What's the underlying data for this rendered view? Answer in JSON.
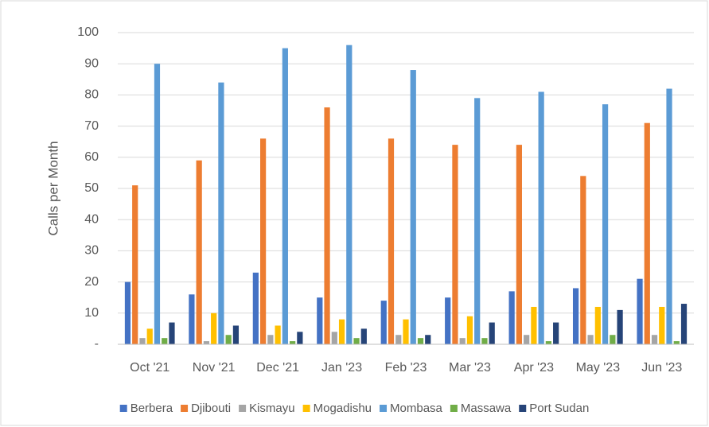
{
  "chart_data": {
    "type": "bar",
    "ylabel": "Calls per Month",
    "categories": [
      "Oct '21",
      "Nov '21",
      "Dec '21",
      "Jan '23",
      "Feb '23",
      "Mar '23",
      "Apr '23",
      "May '23",
      "Jun '23"
    ],
    "series": [
      {
        "name": "Berbera",
        "color": "#4472c4",
        "values": [
          20,
          16,
          23,
          15,
          14,
          15,
          17,
          18,
          21
        ]
      },
      {
        "name": "Djibouti",
        "color": "#ed7d31",
        "values": [
          51,
          59,
          66,
          76,
          66,
          64,
          64,
          54,
          71
        ]
      },
      {
        "name": "Kismayu",
        "color": "#a5a5a5",
        "values": [
          2,
          1,
          3,
          4,
          3,
          2,
          3,
          3,
          3
        ]
      },
      {
        "name": "Mogadishu",
        "color": "#ffc000",
        "values": [
          5,
          10,
          6,
          8,
          8,
          9,
          12,
          12,
          12
        ]
      },
      {
        "name": "Mombasa",
        "color": "#5b9bd5",
        "values": [
          90,
          84,
          95,
          96,
          88,
          79,
          81,
          77,
          82
        ]
      },
      {
        "name": "Massawa",
        "color": "#70ad47",
        "values": [
          2,
          3,
          1,
          2,
          2,
          2,
          1,
          3,
          1
        ]
      },
      {
        "name": "Port Sudan",
        "color": "#264478",
        "values": [
          7,
          6,
          4,
          5,
          3,
          7,
          7,
          11,
          13
        ]
      }
    ],
    "ylim": [
      0,
      100
    ],
    "yticks": [
      {
        "value": 0,
        "label": "-"
      },
      10,
      20,
      30,
      40,
      50,
      60,
      70,
      80,
      90,
      100
    ],
    "grid": true,
    "legend": "bottom"
  }
}
